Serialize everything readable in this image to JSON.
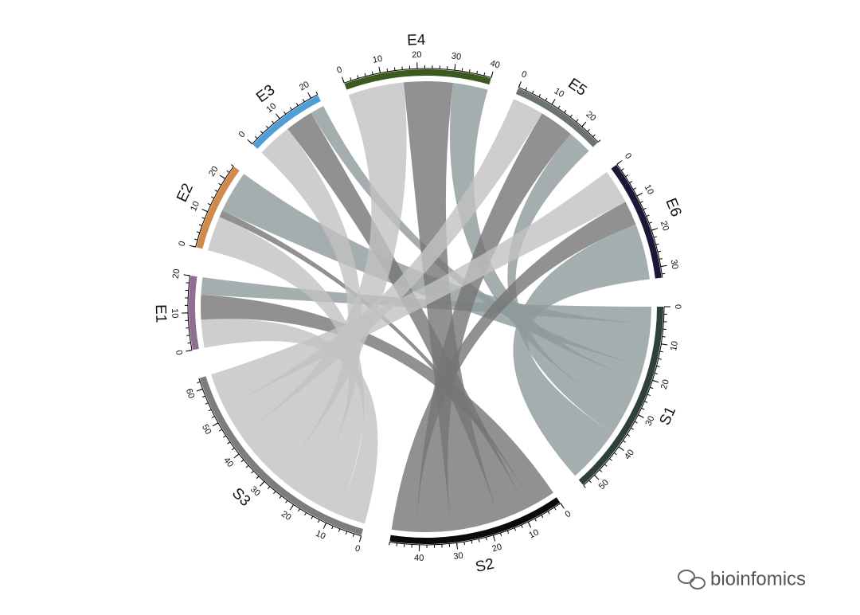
{
  "chart_data": {
    "type": "chord",
    "sectors": [
      {
        "name": "S1",
        "color": "#2f403c",
        "link_color": "#8e9a9a",
        "ticks": [
          0,
          10,
          20,
          30,
          40,
          50
        ]
      },
      {
        "name": "S2",
        "color": "#0a0a0a",
        "link_color": "#767676",
        "ticks": [
          0,
          10,
          20,
          30,
          40
        ]
      },
      {
        "name": "S3",
        "color": "#7c7e7c",
        "link_color": "#c2c2c2",
        "ticks": [
          0,
          10,
          20,
          30,
          40,
          50,
          60
        ]
      },
      {
        "name": "E1",
        "color": "#8f6f8f",
        "ticks": [
          0,
          10,
          20
        ]
      },
      {
        "name": "E2",
        "color": "#d08a4c",
        "ticks": [
          0,
          10,
          20
        ]
      },
      {
        "name": "E3",
        "color": "#4f9ed8",
        "ticks": [
          0,
          10,
          20
        ]
      },
      {
        "name": "E4",
        "color": "#3c5a1e",
        "ticks": [
          0,
          10,
          20,
          30,
          40
        ]
      },
      {
        "name": "E5",
        "color": "#6b736e",
        "ticks": [
          0,
          10,
          20
        ]
      },
      {
        "name": "E6",
        "color": "#1a1838",
        "ticks": [
          0,
          10,
          20,
          30
        ]
      }
    ],
    "links": [
      {
        "source": "E1",
        "target": "S3",
        "value": 8
      },
      {
        "source": "E1",
        "target": "S2",
        "value": 7
      },
      {
        "source": "E1",
        "target": "S1",
        "value": 5
      },
      {
        "source": "E2",
        "target": "S3",
        "value": 10
      },
      {
        "source": "E2",
        "target": "S2",
        "value": 2
      },
      {
        "source": "E2",
        "target": "S1",
        "value": 12
      },
      {
        "source": "E3",
        "target": "S3",
        "value": 10
      },
      {
        "source": "E3",
        "target": "S2",
        "value": 8
      },
      {
        "source": "E3",
        "target": "S1",
        "value": 4
      },
      {
        "source": "E4",
        "target": "S3",
        "value": 16
      },
      {
        "source": "E4",
        "target": "S2",
        "value": 14
      },
      {
        "source": "E4",
        "target": "S1",
        "value": 10
      },
      {
        "source": "E5",
        "target": "S3",
        "value": 9
      },
      {
        "source": "E5",
        "target": "S2",
        "value": 10
      },
      {
        "source": "E5",
        "target": "S1",
        "value": 7
      },
      {
        "source": "E6",
        "target": "S3",
        "value": 10
      },
      {
        "source": "E6",
        "target": "S2",
        "value": 7
      },
      {
        "source": "E6",
        "target": "S1",
        "value": 16
      }
    ]
  },
  "watermark": "bioinfomics"
}
